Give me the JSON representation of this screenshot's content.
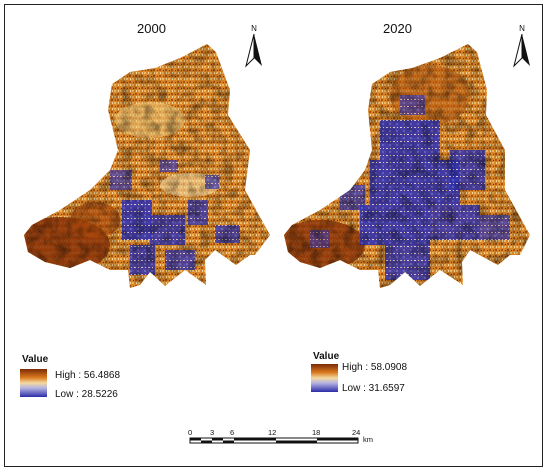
{
  "maps": [
    {
      "title": "2000",
      "north_label": "N",
      "legend": {
        "title": "Value",
        "high_label": "High : 56.4868",
        "low_label": "Low : 28.5226"
      }
    },
    {
      "title": "2020",
      "north_label": "N",
      "legend": {
        "title": "Value",
        "high_label": "High : 58.0908",
        "low_label": "Low : 31.6597"
      }
    }
  ],
  "scale_bar": {
    "ticks": [
      "0",
      "3",
      "6",
      "12",
      "18",
      "24"
    ],
    "unit": "km"
  },
  "colors": {
    "high": "#8a3208",
    "mid_high": "#d98426",
    "mid": "#f2d49a",
    "mid_low": "#b6b6e4",
    "low": "#2e2ea8"
  }
}
